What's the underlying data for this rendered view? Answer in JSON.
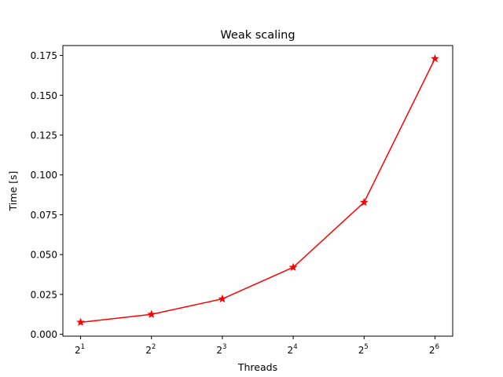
{
  "chart_data": {
    "type": "line",
    "title": "Weak scaling",
    "xlabel": "Threads",
    "ylabel": "Time [s]",
    "x_scale": "log2",
    "x_base": "2",
    "x": [
      2,
      4,
      8,
      16,
      32,
      64
    ],
    "x_exponents": [
      "1",
      "2",
      "3",
      "4",
      "5",
      "6"
    ],
    "y": [
      0.0075,
      0.0125,
      0.0222,
      0.042,
      0.0828,
      0.173
    ],
    "ylim": [
      -0.0012,
      0.1812
    ],
    "y_ticks": [
      "0.000",
      "0.025",
      "0.050",
      "0.075",
      "0.100",
      "0.125",
      "0.150",
      "0.175"
    ],
    "y_tick_values": [
      0,
      0.025,
      0.05,
      0.075,
      0.1,
      0.125,
      0.15,
      0.175
    ],
    "grid": false,
    "legend": "none",
    "series_color": "#ff0000",
    "marker": "star"
  }
}
